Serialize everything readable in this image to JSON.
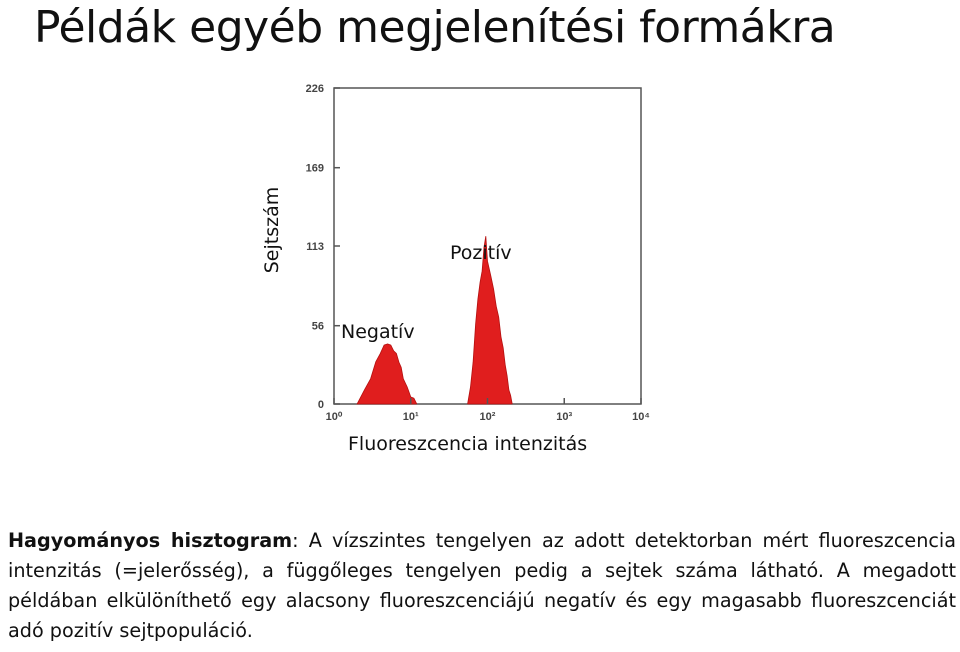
{
  "title": "Példák egyéb megjelenítési formákra",
  "annotations": {
    "ylabel": "Sejtszám",
    "positive": "Pozitív",
    "negative": "Negatív",
    "xlabel": "Fluoreszcencia intenzitás"
  },
  "chart_data": {
    "type": "area",
    "x_scale": "log",
    "xlim": [
      1,
      10000
    ],
    "ylim": [
      0,
      226
    ],
    "yticks": [
      0,
      56,
      113,
      169,
      226
    ],
    "ytick_labels": [
      "0",
      "56",
      "113",
      "169",
      "226"
    ],
    "xticks": [
      1,
      10,
      100,
      1000,
      10000
    ],
    "xtick_labels": [
      "10⁰",
      "10¹",
      "10²",
      "10³",
      "10⁴"
    ],
    "fill_color": "#e01e1e",
    "series": [
      {
        "x": [
          2.0,
          2.5,
          3.0,
          3.5,
          4.0,
          4.5,
          5.0,
          5.5,
          6.0,
          6.5,
          7.0,
          7.5,
          8.0,
          9.0,
          10.0,
          11.0,
          12.0
        ],
        "y": [
          0,
          8,
          18,
          28,
          36,
          40,
          43,
          40,
          38,
          34,
          30,
          24,
          18,
          10,
          5,
          2,
          0
        ]
      },
      {
        "x": [
          55,
          60,
          65,
          70,
          75,
          80,
          85,
          90,
          95,
          100,
          110,
          120,
          130,
          140,
          150,
          160,
          170,
          180,
          190,
          200,
          210
        ],
        "y": [
          0,
          10,
          30,
          55,
          75,
          85,
          95,
          110,
          120,
          100,
          92,
          80,
          70,
          60,
          48,
          38,
          28,
          18,
          10,
          4,
          0
        ]
      }
    ]
  },
  "paragraph": {
    "lead": "Hagyományos hisztogram",
    "rest": ": A vízszintes tengelyen az adott detektorban mért fluoreszcencia intenzitás (=jelerősség), a függőleges tengelyen pedig a sejtek száma látható. A megadott példában elkülöníthető egy alacsony fluoreszcenciájú negatív és egy magasabb fluoreszcenciát adó pozitív sejtpopuláció."
  }
}
